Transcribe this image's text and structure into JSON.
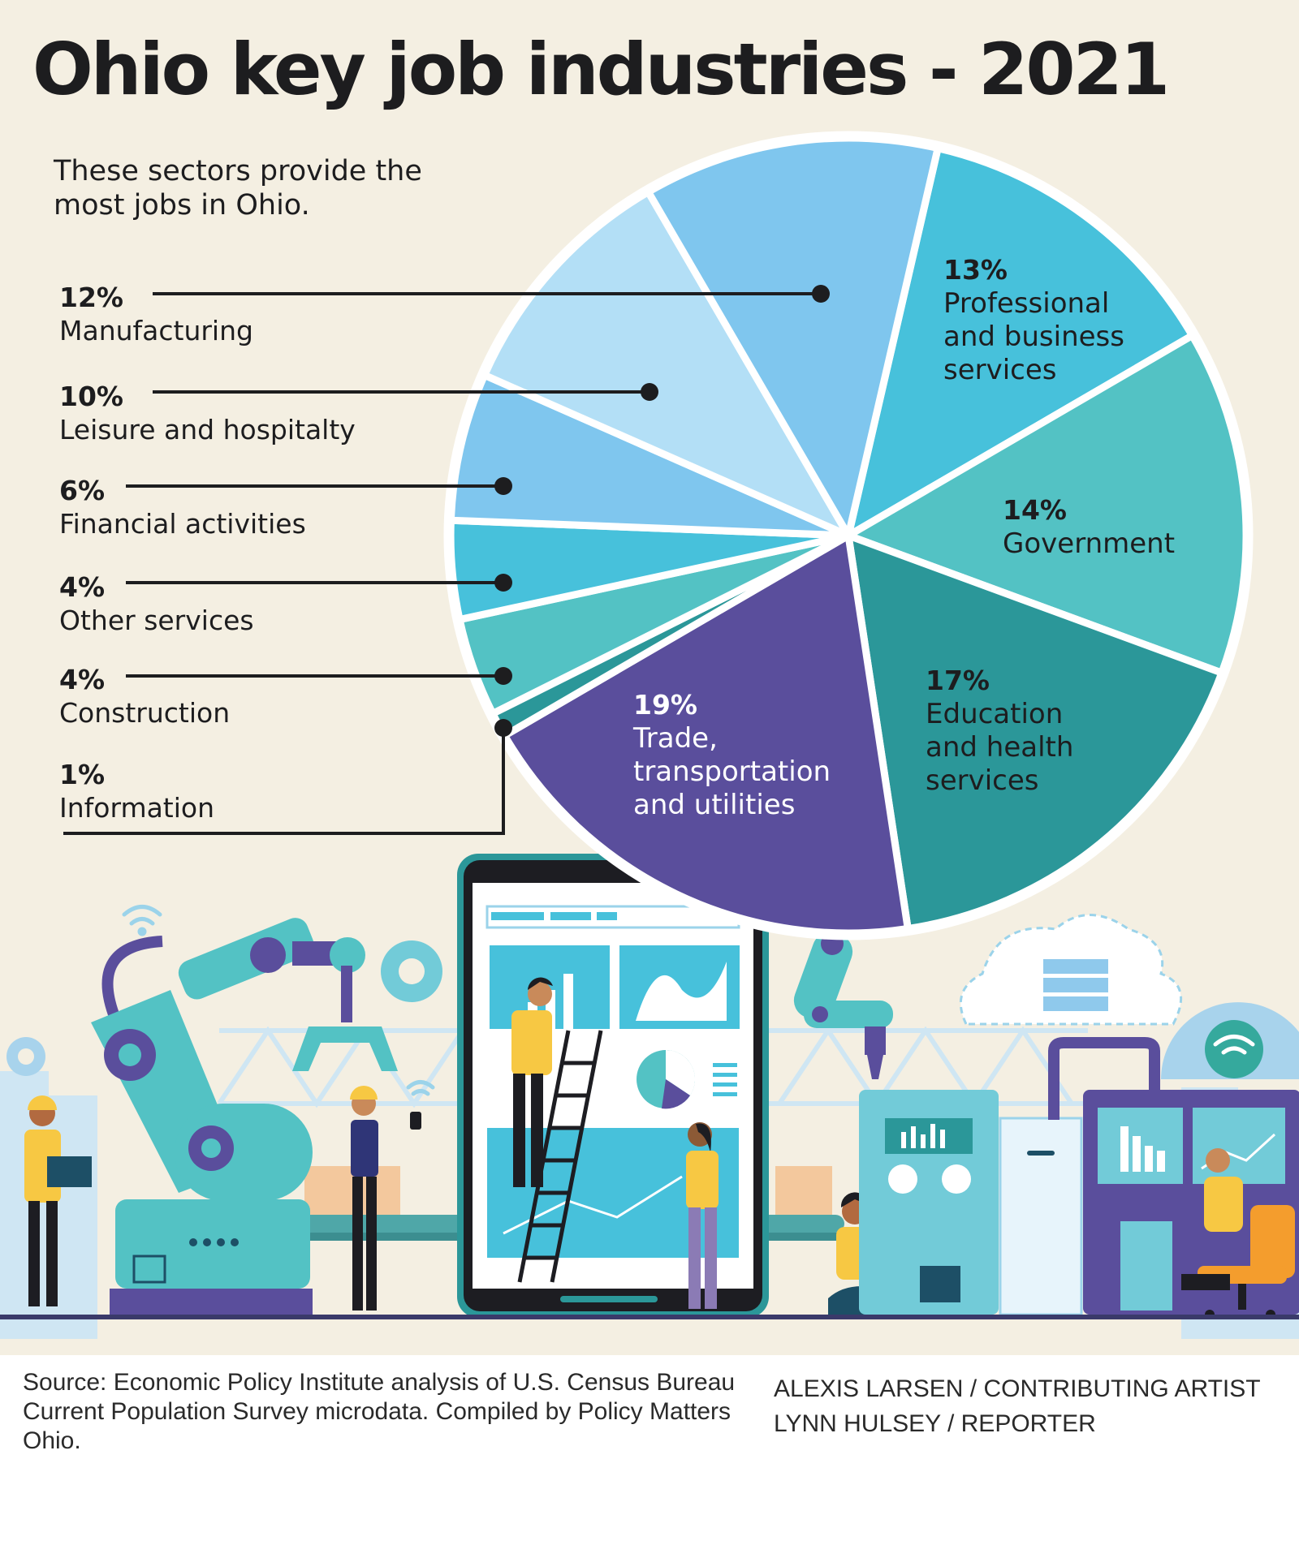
{
  "title": "Ohio key job industries - 2021",
  "subtitle": "These sectors provide the most jobs in Ohio.",
  "chart_data": {
    "type": "pie",
    "title": "Ohio key job industries - 2021",
    "unit": "%",
    "slices": [
      {
        "label": "Professional and business services",
        "pct_label": "13%",
        "value": 13,
        "color": "#47c1db"
      },
      {
        "label": "Government",
        "pct_label": "14%",
        "value": 14,
        "color": "#53c2c4"
      },
      {
        "label": "Education and health services",
        "pct_label": "17%",
        "value": 17,
        "color": "#2b9799"
      },
      {
        "label": "Trade, transportation and utilities",
        "pct_label": "19%",
        "value": 19,
        "color": "#5a4e9c"
      },
      {
        "label": "Information",
        "pct_label": "1%",
        "value": 1,
        "color": "#2b9799"
      },
      {
        "label": "Construction",
        "pct_label": "4%",
        "value": 4,
        "color": "#53c2c4"
      },
      {
        "label": "Other services",
        "pct_label": "4%",
        "value": 4,
        "color": "#47c1db"
      },
      {
        "label": "Financial activities",
        "pct_label": "6%",
        "value": 6,
        "color": "#7fc6ee"
      },
      {
        "label": "Leisure and hospitalty",
        "pct_label": "10%",
        "value": 10,
        "color": "#b3dff6"
      },
      {
        "label": "Manufacturing",
        "pct_label": "12%",
        "value": 12,
        "color": "#7fc6ee"
      }
    ]
  },
  "slice_labels": {
    "professional": {
      "pct": "13%",
      "lines": [
        "Professional",
        "and business",
        "services"
      ]
    },
    "government": {
      "pct": "14%",
      "lines": [
        "Government"
      ]
    },
    "education": {
      "pct": "17%",
      "lines": [
        "Education",
        "and health",
        "services"
      ]
    },
    "trade": {
      "pct": "19%",
      "lines": [
        "Trade,",
        "transportation",
        "and utilities"
      ]
    }
  },
  "legend": [
    {
      "pct": "12%",
      "label": "Manufacturing"
    },
    {
      "pct": "10%",
      "label": "Leisure and hospitalty"
    },
    {
      "pct": "6%",
      "label": "Financial activities"
    },
    {
      "pct": "4%",
      "label": "Other services"
    },
    {
      "pct": "4%",
      "label": "Construction"
    },
    {
      "pct": "1%",
      "label": "Information"
    }
  ],
  "footer": {
    "source": "Source: Economic Policy Institute analysis of U.S. Census Bureau Current Population Survey microdata. Compiled by Policy Matters Ohio.",
    "credit_artist": "ALEXIS LARSEN / CONTRIBUTING ARTIST",
    "credit_reporter": "LYNN HULSEY / REPORTER"
  },
  "illustration": {
    "icons": [
      "robot-arm-icon",
      "gear-icon",
      "wifi-icon",
      "tablet-dashboard-icon",
      "ladder-icon",
      "cloud-server-icon",
      "conveyor-belt-icon",
      "control-panel-icon",
      "office-chair-icon",
      "worker-figure-icon"
    ]
  }
}
